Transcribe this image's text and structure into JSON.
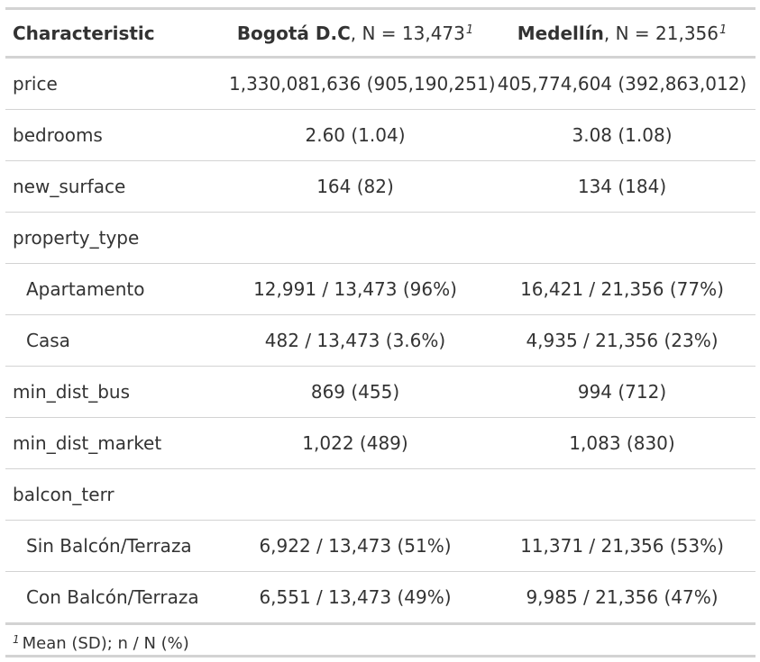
{
  "header": {
    "characteristic": "Characteristic",
    "col1_name": "Bogotá D.C",
    "col1_n": ", N = 13,473",
    "col2_name": "Medellín",
    "col2_n": ", N = 21,356",
    "footnote_mark": "1"
  },
  "rows": [
    {
      "label": "price",
      "v1": "1,330,081,636 (905,190,251)",
      "v2": "405,774,604 (392,863,012)"
    },
    {
      "label": "bedrooms",
      "v1": "2.60 (1.04)",
      "v2": "3.08 (1.08)"
    },
    {
      "label": "new_surface",
      "v1": "164 (82)",
      "v2": "134 (184)"
    },
    {
      "label": "property_type",
      "v1": "",
      "v2": ""
    },
    {
      "label": "Apartamento",
      "v1": "12,991 / 13,473 (96%)",
      "v2": "16,421 / 21,356 (77%)"
    },
    {
      "label": "Casa",
      "v1": "482 / 13,473 (3.6%)",
      "v2": "4,935 / 21,356 (23%)"
    },
    {
      "label": "min_dist_bus",
      "v1": "869 (455)",
      "v2": "994 (712)"
    },
    {
      "label": "min_dist_market",
      "v1": "1,022 (489)",
      "v2": "1,083 (830)"
    },
    {
      "label": "balcon_terr",
      "v1": "",
      "v2": ""
    },
    {
      "label": "Sin Balcón/Terraza",
      "v1": "6,922 / 13,473 (51%)",
      "v2": "11,371 / 21,356 (53%)"
    },
    {
      "label": "Con Balcón/Terraza",
      "v1": "6,551 / 13,473 (49%)",
      "v2": "9,985 / 21,356 (47%)"
    }
  ],
  "footnote": {
    "mark": "1",
    "text": "Mean (SD); n / N (%)"
  }
}
